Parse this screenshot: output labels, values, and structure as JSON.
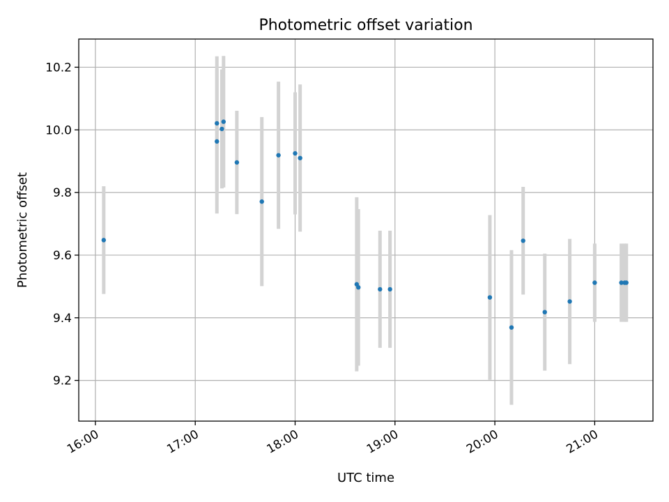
{
  "chart_data": {
    "type": "scatter",
    "title": "Photometric offset variation",
    "xlabel": "UTC time",
    "ylabel": "Photometric offset",
    "x_axis": "time",
    "xlim": [
      "15:50",
      "21:35"
    ],
    "ylim": [
      9.07,
      10.29
    ],
    "x_ticks": [
      "16:00",
      "17:00",
      "18:00",
      "19:00",
      "20:00",
      "21:00"
    ],
    "y_ticks": [
      9.2,
      9.4,
      9.6,
      9.8,
      10.0,
      10.2
    ],
    "grid": true,
    "colors": {
      "point": "#1f77b4",
      "errorbar": "#d3d3d3"
    },
    "points": [
      {
        "x": "16:05",
        "y": 9.648,
        "err": 0.172
      },
      {
        "x": "17:13",
        "y": 10.021,
        "err": 0.214
      },
      {
        "x": "17:13",
        "y": 9.963,
        "err": 0.23
      },
      {
        "x": "17:16",
        "y": 10.003,
        "err": 0.19
      },
      {
        "x": "17:17",
        "y": 10.026,
        "err": 0.21
      },
      {
        "x": "17:25",
        "y": 9.896,
        "err": 0.165
      },
      {
        "x": "17:40",
        "y": 9.771,
        "err": 0.27
      },
      {
        "x": "17:50",
        "y": 9.919,
        "err": 0.235
      },
      {
        "x": "18:00",
        "y": 9.925,
        "err": 0.195
      },
      {
        "x": "18:03",
        "y": 9.91,
        "err": 0.235
      },
      {
        "x": "18:37",
        "y": 9.507,
        "err": 0.278
      },
      {
        "x": "18:38",
        "y": 9.497,
        "err": 0.25
      },
      {
        "x": "18:51",
        "y": 9.491,
        "err": 0.187
      },
      {
        "x": "18:57",
        "y": 9.491,
        "err": 0.187
      },
      {
        "x": "19:57",
        "y": 9.465,
        "err": 0.263
      },
      {
        "x": "20:10",
        "y": 9.369,
        "err": 0.247
      },
      {
        "x": "20:17",
        "y": 9.646,
        "err": 0.172
      },
      {
        "x": "20:30",
        "y": 9.418,
        "err": 0.187
      },
      {
        "x": "20:45",
        "y": 9.452,
        "err": 0.2
      },
      {
        "x": "21:00",
        "y": 9.512,
        "err": 0.125
      },
      {
        "x": "21:16",
        "y": 9.512,
        "err": 0.125
      },
      {
        "x": "21:18",
        "y": 9.512,
        "err": 0.125
      },
      {
        "x": "21:19",
        "y": 9.512,
        "err": 0.125
      }
    ]
  }
}
